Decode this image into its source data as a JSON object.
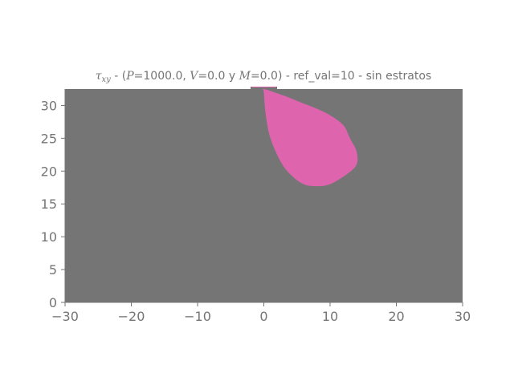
{
  "chart_data": {
    "type": "heatmap",
    "title": {
      "tau_symbol": "τ",
      "tau_sub": "xy",
      "part1": " - (",
      "p_var": "P",
      "part2": "=1000.0, ",
      "v_var": "V",
      "part3": "=0.0 y ",
      "m_var": "M",
      "part4": "=0.0) - ref_val=10 - sin estratos"
    },
    "xlim": [
      -30,
      30
    ],
    "ylim": [
      0,
      32.5
    ],
    "xticks": [
      -30,
      -20,
      -10,
      0,
      10,
      20,
      30
    ],
    "xtick_labels": [
      "−30",
      "−20",
      "−10",
      "0",
      "10",
      "20",
      "30"
    ],
    "yticks": [
      0,
      5,
      10,
      15,
      20,
      25,
      30
    ],
    "ytick_labels": [
      "0",
      "5",
      "10",
      "15",
      "20",
      "25",
      "30"
    ],
    "background_color": "#757575",
    "region_color": "#DE64AE",
    "region_boundary": [
      [
        0.0,
        32.5
      ],
      [
        3.0,
        31.5
      ],
      [
        5.5,
        30.5
      ],
      [
        8.0,
        29.5
      ],
      [
        10.0,
        28.5
      ],
      [
        12.0,
        27.0
      ],
      [
        13.0,
        25.0
      ],
      [
        14.0,
        23.0
      ],
      [
        14.0,
        21.0
      ],
      [
        12.5,
        19.5
      ],
      [
        10.0,
        18.0
      ],
      [
        8.0,
        17.7
      ],
      [
        6.0,
        18.0
      ],
      [
        4.0,
        19.5
      ],
      [
        2.5,
        21.5
      ],
      [
        1.0,
        25.0
      ],
      [
        0.3,
        28.5
      ],
      [
        0.0,
        32.0
      ]
    ],
    "top_notch": [
      [
        -2.0,
        2.0
      ]
    ],
    "grid": false,
    "legend": "none"
  }
}
